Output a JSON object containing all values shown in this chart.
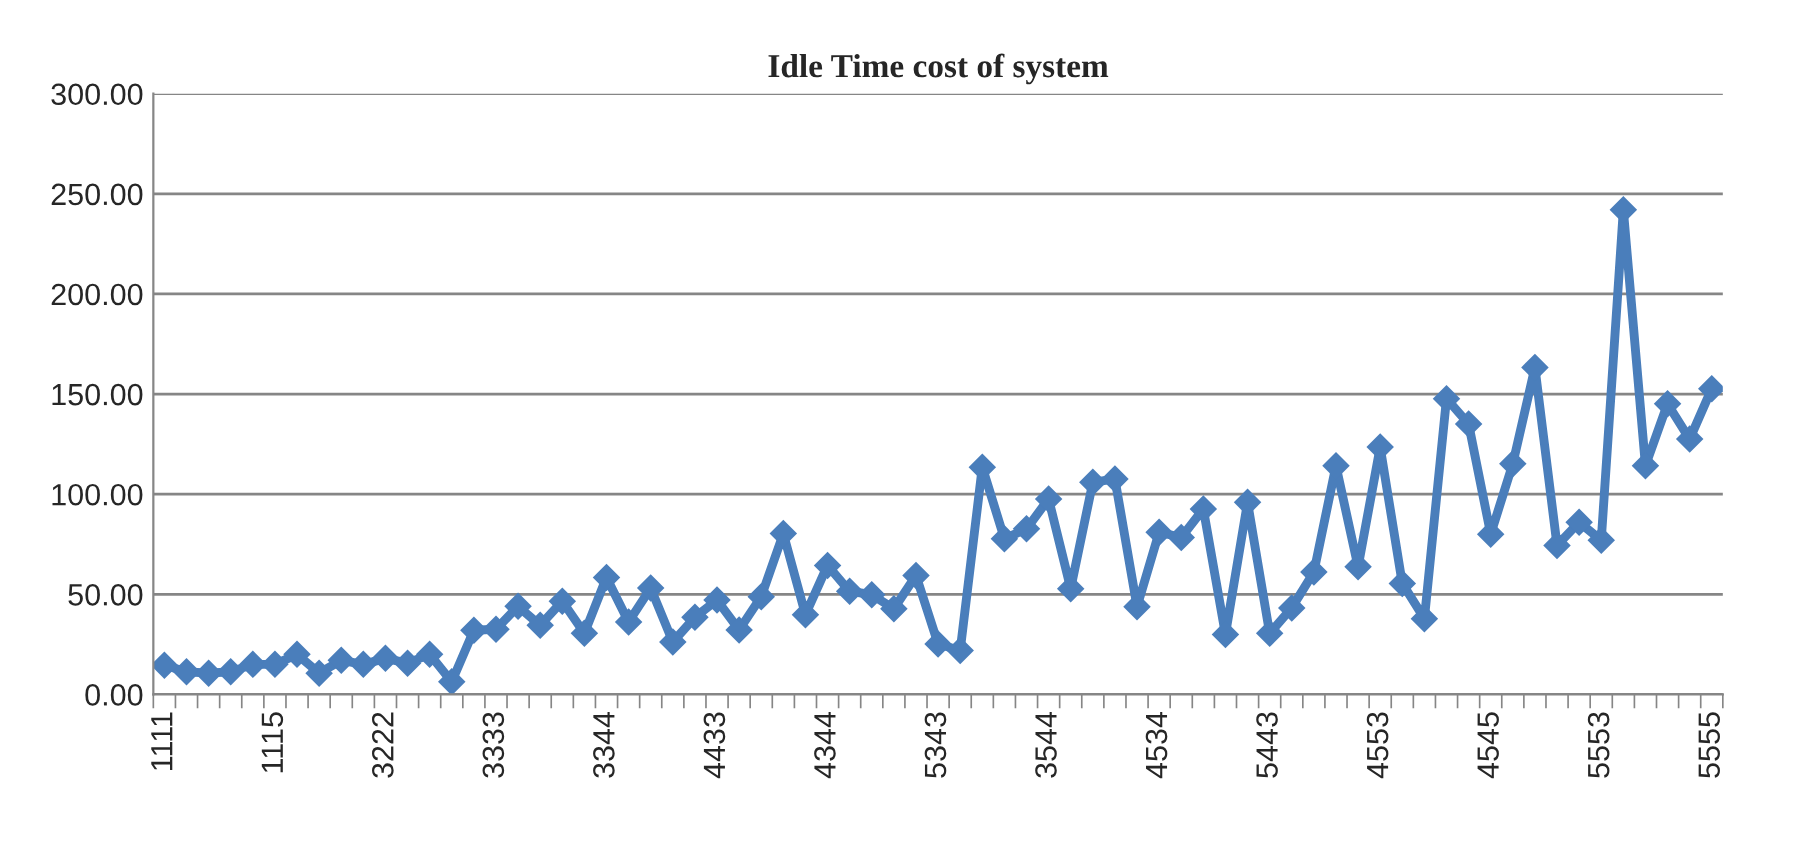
{
  "chart_data": {
    "type": "line",
    "title": "Idle Time cost of system",
    "categories": [
      "1111",
      null,
      null,
      null,
      null,
      "1115",
      null,
      null,
      null,
      null,
      "3222",
      null,
      null,
      null,
      null,
      "3333",
      null,
      null,
      null,
      null,
      "3344",
      null,
      null,
      null,
      null,
      "4433",
      null,
      null,
      null,
      null,
      "4344",
      null,
      null,
      null,
      null,
      "5343",
      null,
      null,
      null,
      null,
      "3544",
      null,
      null,
      null,
      null,
      "4534",
      null,
      null,
      null,
      null,
      "5443",
      null,
      null,
      null,
      null,
      "4553",
      null,
      null,
      null,
      null,
      "4545",
      null,
      null,
      null,
      null,
      "5553",
      null,
      null,
      null,
      null,
      "5555"
    ],
    "series": [
      {
        "color": "#4a7ebb",
        "values": [
          14.6,
          11.3,
          10.6,
          11.3,
          15,
          15,
          20,
          10.6,
          17,
          15,
          18,
          15.6,
          20,
          6.3,
          32,
          32.5,
          44,
          34.5,
          46.5,
          30.5,
          58.4,
          36.2,
          53.1,
          26.2,
          38.5,
          47.1,
          32.2,
          48.8,
          80.3,
          39.8,
          64.4,
          51.5,
          49.8,
          42.8,
          59.4,
          25.2,
          21.9,
          113.5,
          77.7,
          82.7,
          97.6,
          52.8,
          105.9,
          107.6,
          43.8,
          81,
          78.4,
          92.6,
          29.9,
          95.9,
          30.5,
          43.2,
          61.1,
          114.2,
          63.7,
          123.5,
          55.4,
          37.8,
          147.7,
          135.1,
          80,
          115.2,
          163.3,
          74.4,
          86,
          77,
          242,
          114.2,
          145.1,
          127.5,
          152.7
        ]
      }
    ],
    "ylim": [
      0,
      300
    ],
    "yticks": [
      {
        "value": 0,
        "label": "0.00"
      },
      {
        "value": 50,
        "label": "50.00"
      },
      {
        "value": 100,
        "label": "100.00"
      },
      {
        "value": 150,
        "label": "150.00"
      },
      {
        "value": 200,
        "label": "200.00"
      },
      {
        "value": 250,
        "label": "250.00"
      },
      {
        "value": 300,
        "label": "300.00"
      }
    ],
    "grid": "y",
    "marker": "diamond",
    "line_style": "solid",
    "legend": false
  }
}
